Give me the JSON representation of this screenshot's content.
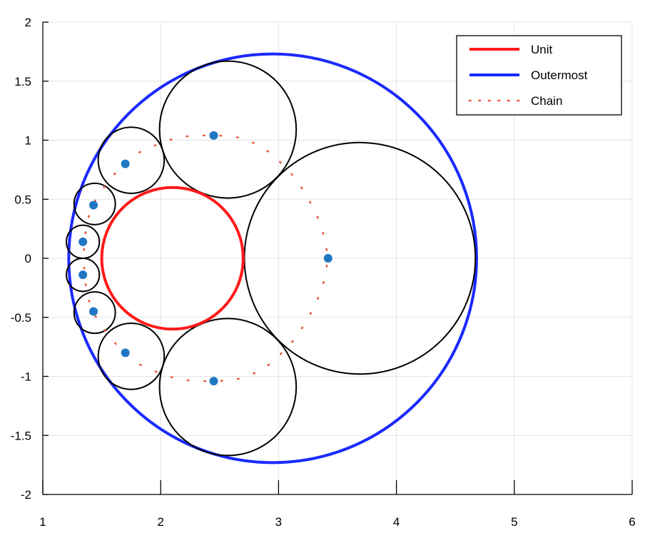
{
  "chart_data": {
    "type": "scatter",
    "title": "",
    "xlabel": "",
    "ylabel": "",
    "xlim": [
      1,
      6
    ],
    "ylim": [
      -2,
      2
    ],
    "xticks": [
      "1",
      "2",
      "3",
      "4",
      "5",
      "6"
    ],
    "yticks": [
      "-2",
      "-1.5",
      "-1",
      "-0.5",
      "0",
      "0.5",
      "1",
      "1.5",
      "2"
    ],
    "grid": true,
    "legend_position": "top-right",
    "legend": [
      {
        "key": "unit",
        "label": "Unit",
        "style": "solid",
        "color": "#ff1a1a"
      },
      {
        "key": "outermost",
        "label": "Outermost",
        "style": "solid",
        "color": "#1a2aff"
      },
      {
        "key": "chain",
        "label": "Chain",
        "style": "dotted",
        "color": "#e8553a"
      }
    ],
    "unit_circle": {
      "cx": 2.1,
      "cy": 0.0,
      "r": 0.6
    },
    "outermost_circle": {
      "cx": 2.95,
      "cy": 0.0,
      "r": 1.73
    },
    "chain_circles": [
      {
        "cx": 3.69,
        "cy": 0.0,
        "r": 0.98
      },
      {
        "cx": 2.57,
        "cy": 1.09,
        "r": 0.58
      },
      {
        "cx": 2.57,
        "cy": -1.09,
        "r": 0.58
      },
      {
        "cx": 1.75,
        "cy": 0.83,
        "r": 0.28
      },
      {
        "cx": 1.75,
        "cy": -0.83,
        "r": 0.28
      },
      {
        "cx": 1.44,
        "cy": 0.46,
        "r": 0.175
      },
      {
        "cx": 1.44,
        "cy": -0.46,
        "r": 0.175
      },
      {
        "cx": 1.34,
        "cy": 0.14,
        "r": 0.14
      },
      {
        "cx": 1.34,
        "cy": -0.14,
        "r": 0.14
      }
    ],
    "chain_path": [
      [
        1.35,
        0.07
      ],
      [
        1.36,
        0.2
      ],
      [
        1.38,
        0.33
      ],
      [
        1.44,
        0.48
      ],
      [
        1.53,
        0.62
      ],
      [
        1.64,
        0.75
      ],
      [
        1.76,
        0.87
      ],
      [
        1.89,
        0.93
      ],
      [
        2.03,
        0.99
      ],
      [
        2.18,
        1.03
      ],
      [
        2.33,
        1.04
      ],
      [
        2.48,
        1.04
      ],
      [
        2.63,
        1.03
      ],
      [
        2.78,
        0.98
      ],
      [
        2.92,
        0.9
      ],
      [
        3.04,
        0.79
      ],
      [
        3.15,
        0.67
      ],
      [
        3.25,
        0.51
      ],
      [
        3.33,
        0.35
      ],
      [
        3.39,
        0.18
      ],
      [
        3.42,
        0.0
      ],
      [
        3.39,
        -0.18
      ],
      [
        3.33,
        -0.35
      ],
      [
        3.25,
        -0.51
      ],
      [
        3.15,
        -0.67
      ],
      [
        3.04,
        -0.79
      ],
      [
        2.92,
        -0.9
      ],
      [
        2.78,
        -0.98
      ],
      [
        2.63,
        -1.03
      ],
      [
        2.48,
        -1.04
      ],
      [
        2.33,
        -1.04
      ],
      [
        2.18,
        -1.03
      ],
      [
        2.03,
        -0.99
      ],
      [
        1.89,
        -0.93
      ],
      [
        1.76,
        -0.87
      ],
      [
        1.64,
        -0.75
      ],
      [
        1.53,
        -0.62
      ],
      [
        1.44,
        -0.48
      ],
      [
        1.38,
        -0.33
      ],
      [
        1.36,
        -0.2
      ],
      [
        1.35,
        -0.07
      ]
    ],
    "points": [
      {
        "x": 3.42,
        "y": 0.0
      },
      {
        "x": 2.45,
        "y": 1.04
      },
      {
        "x": 2.45,
        "y": -1.04
      },
      {
        "x": 1.7,
        "y": 0.8
      },
      {
        "x": 1.7,
        "y": -0.8
      },
      {
        "x": 1.43,
        "y": 0.45
      },
      {
        "x": 1.43,
        "y": -0.45
      },
      {
        "x": 1.34,
        "y": 0.14
      },
      {
        "x": 1.34,
        "y": -0.14
      }
    ],
    "colors": {
      "point": "#1f77c4",
      "circle": "#000000",
      "grid": "#e3e3e3",
      "axis": "#000000"
    }
  }
}
